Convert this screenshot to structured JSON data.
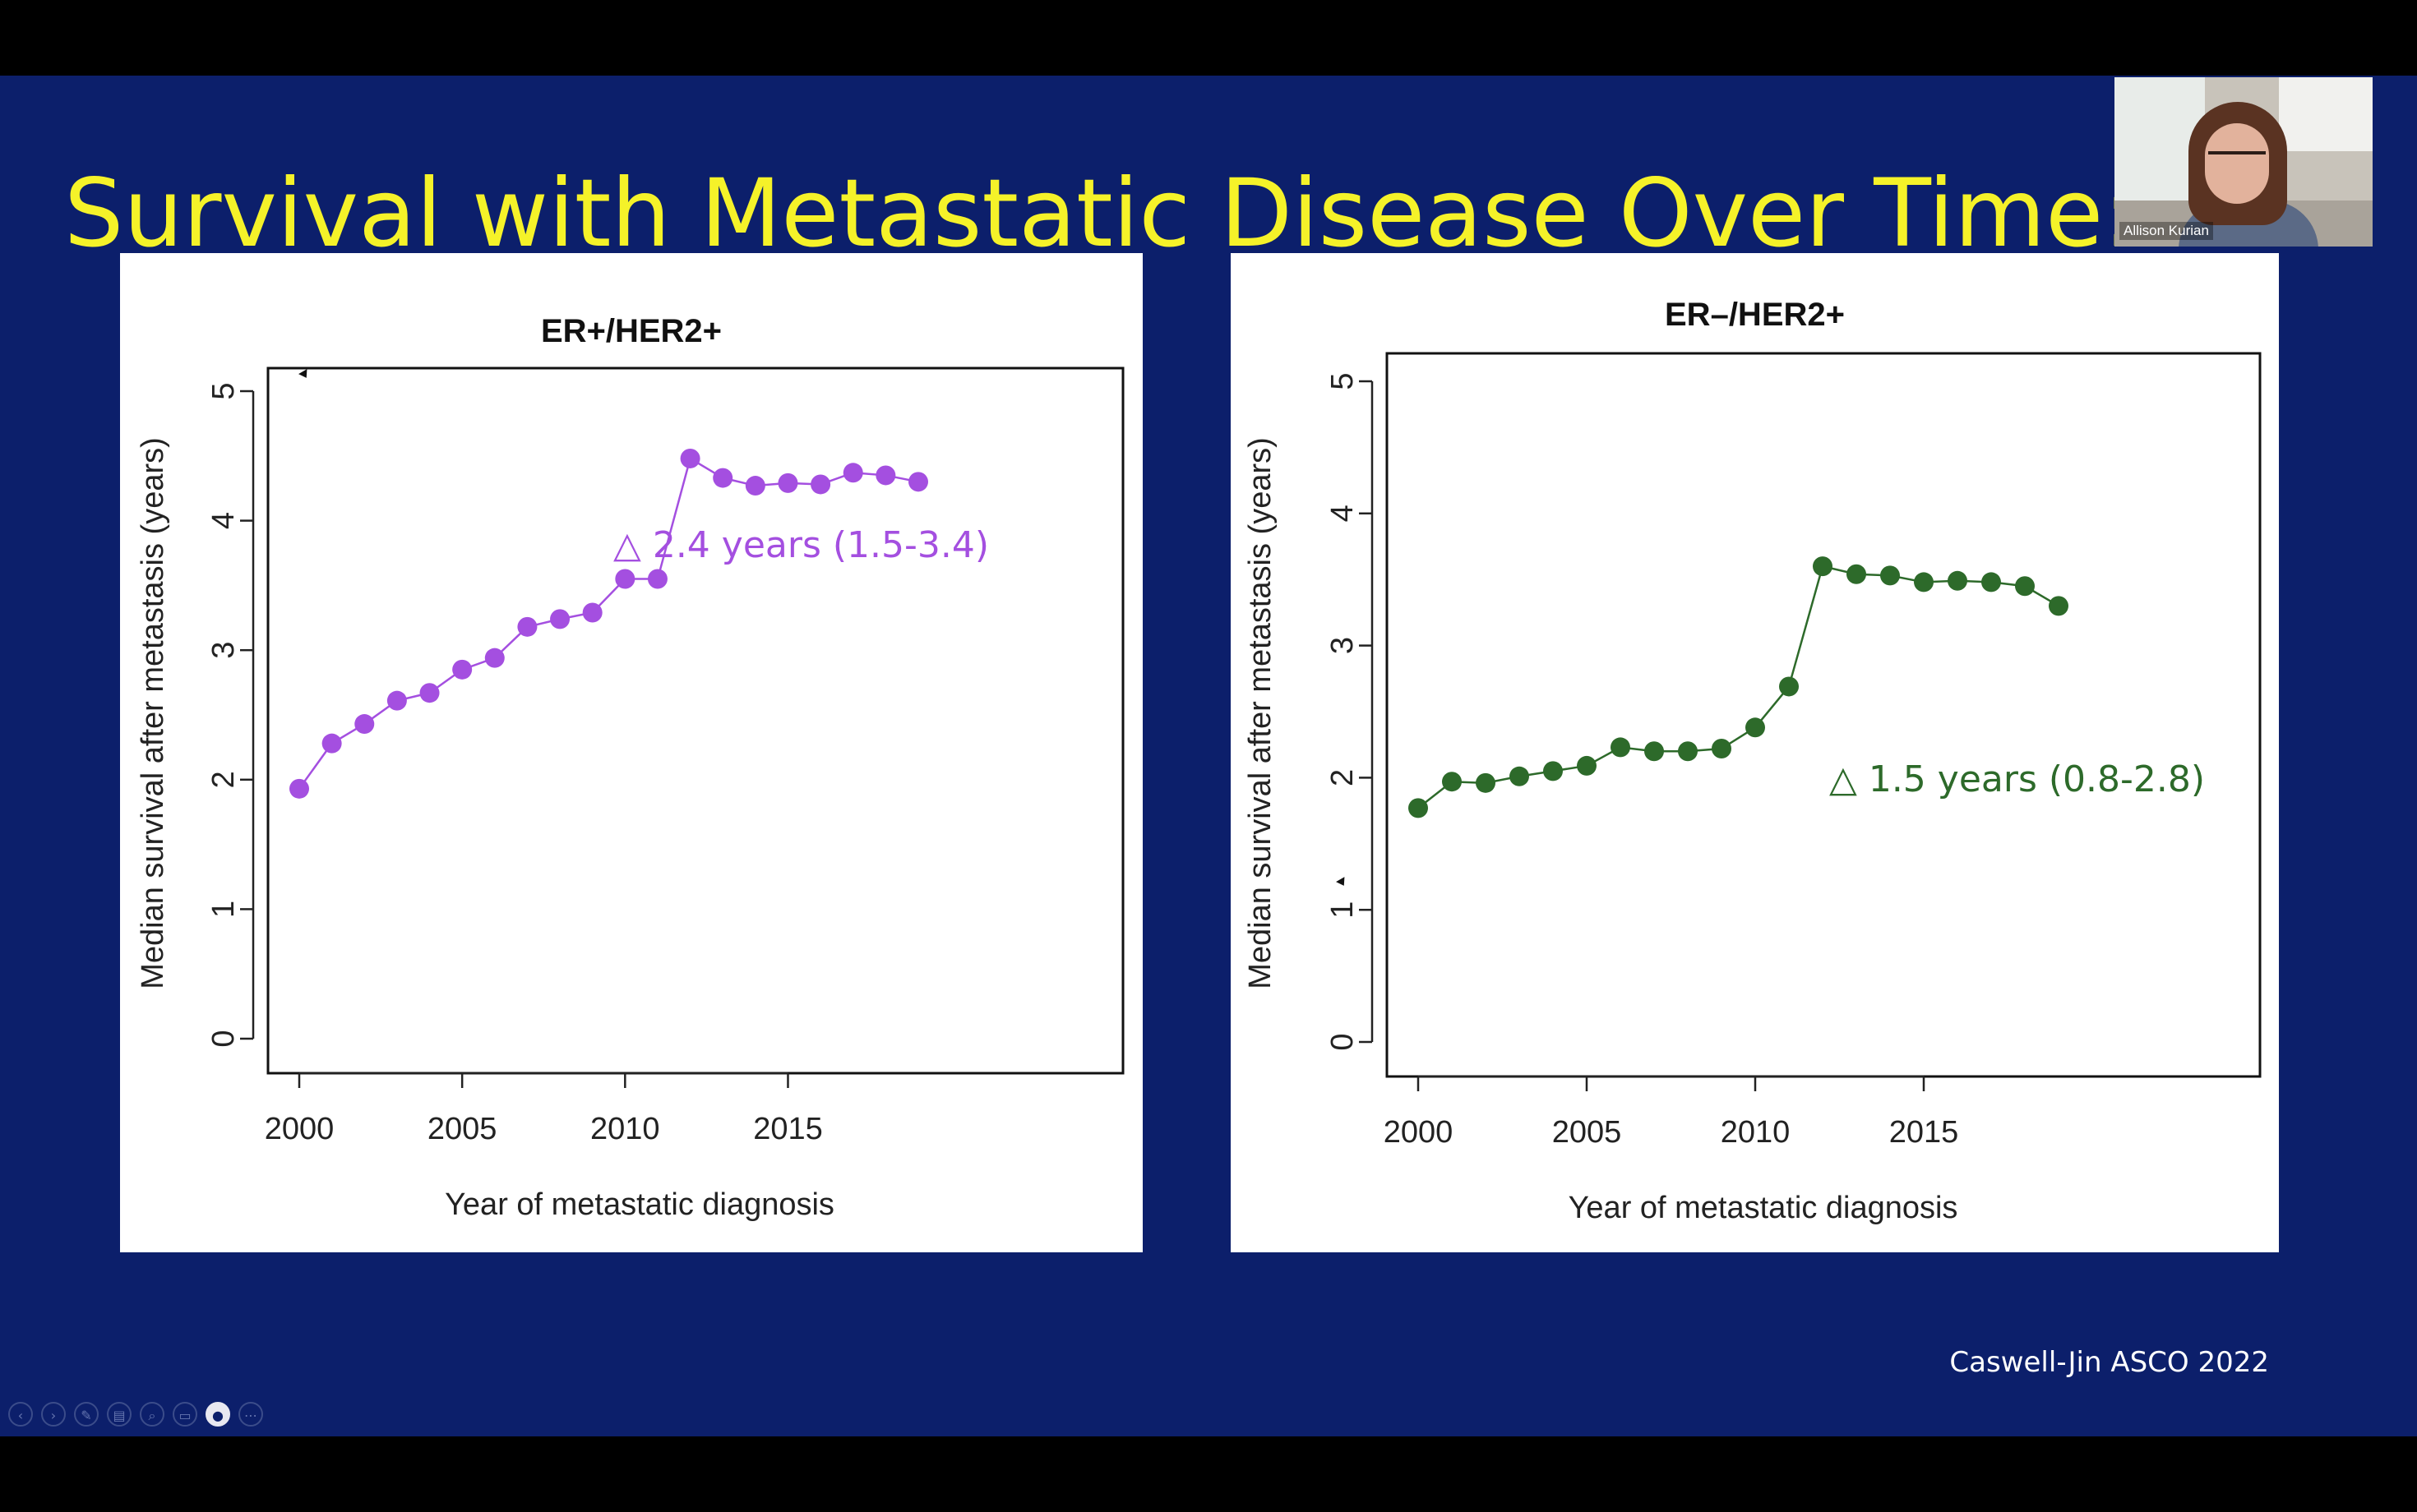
{
  "slide": {
    "title": "Survival with Metastatic Disease Over Time: H",
    "citation": "Caswell-Jin ASCO 2022",
    "background_color": "#0c1f6b",
    "title_color": "#f5f229"
  },
  "webcam": {
    "name": "Allison Kurian"
  },
  "controls": [
    {
      "icon": "prev-icon",
      "glyph": "‹"
    },
    {
      "icon": "next-icon",
      "glyph": "›"
    },
    {
      "icon": "pen-icon",
      "glyph": "✎"
    },
    {
      "icon": "slides-icon",
      "glyph": "▤"
    },
    {
      "icon": "zoom-icon",
      "glyph": "⌕"
    },
    {
      "icon": "subtitles-icon",
      "glyph": "▭"
    },
    {
      "icon": "camera-icon",
      "glyph": "●"
    },
    {
      "icon": "more-icon",
      "glyph": "⋯"
    }
  ],
  "chart_data": [
    {
      "type": "line",
      "title": "ER+/HER2+",
      "xlabel": "Year of metastatic diagnosis",
      "ylabel": "Median survival after metastasis (years)",
      "xlim": [
        2000,
        2019
      ],
      "ylim": [
        0,
        5
      ],
      "xticks": [
        "2000",
        "2005",
        "2010",
        "2015"
      ],
      "yticks": [
        "0",
        "1",
        "2",
        "3",
        "4",
        "5"
      ],
      "color": "#a44fe0",
      "annotation": "△ 2.4 years (1.5-3.4)",
      "x": [
        2000,
        2001,
        2002,
        2003,
        2004,
        2005,
        2006,
        2007,
        2008,
        2009,
        2010,
        2011,
        2012,
        2013,
        2014,
        2015,
        2016,
        2017,
        2018,
        2019
      ],
      "values": [
        1.93,
        2.28,
        2.43,
        2.61,
        2.67,
        2.85,
        2.94,
        3.18,
        3.24,
        3.29,
        3.55,
        3.55,
        4.48,
        4.33,
        4.27,
        4.29,
        4.28,
        4.37,
        4.35,
        4.3
      ]
    },
    {
      "type": "line",
      "title": "ER–/HER2+",
      "xlabel": "Year of metastatic diagnosis",
      "ylabel": "Median survival after metastasis (years)",
      "xlim": [
        2000,
        2019
      ],
      "ylim": [
        0,
        5
      ],
      "xticks": [
        "2000",
        "2005",
        "2010",
        "2015"
      ],
      "yticks": [
        "0",
        "1",
        "2",
        "3",
        "4",
        "5"
      ],
      "color": "#2d6a2a",
      "annotation": "△ 1.5 years (0.8-2.8)",
      "x": [
        2000,
        2001,
        2002,
        2003,
        2004,
        2005,
        2006,
        2007,
        2008,
        2009,
        2010,
        2011,
        2012,
        2013,
        2014,
        2015,
        2016,
        2017,
        2018,
        2019
      ],
      "values": [
        1.77,
        1.97,
        1.96,
        2.01,
        2.05,
        2.09,
        2.23,
        2.2,
        2.2,
        2.22,
        2.38,
        2.69,
        3.6,
        3.54,
        3.53,
        3.48,
        3.49,
        3.48,
        3.45,
        3.3
      ]
    }
  ]
}
